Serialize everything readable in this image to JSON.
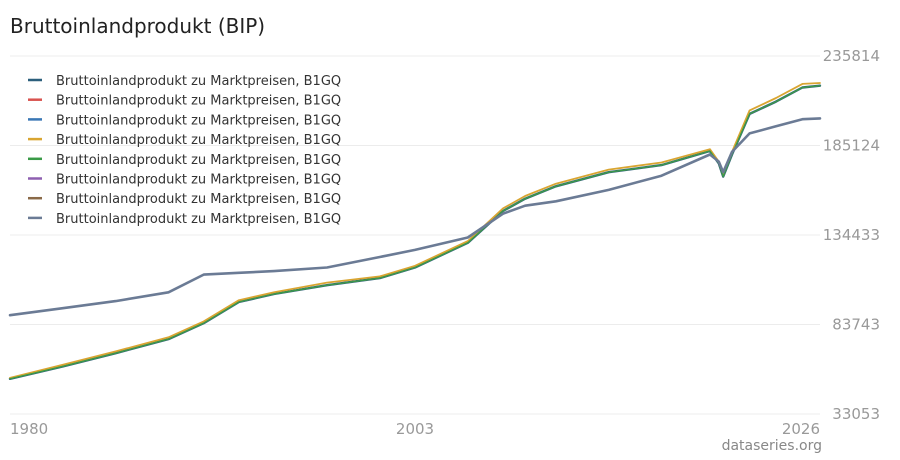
{
  "page": {
    "title": "Bruttoinlandprodukt (BIP)",
    "credit": "dataseries.org"
  },
  "chart_data": {
    "type": "line",
    "title": "Bruttoinlandprodukt (BIP)",
    "xlabel": "",
    "ylabel": "",
    "xlim": [
      1980,
      2026
    ],
    "ylim": [
      33053,
      235814
    ],
    "x_ticks": [
      "1980",
      "2003",
      "2026"
    ],
    "y_ticks": [
      "235814",
      "185124",
      "134433",
      "83743",
      "33053"
    ],
    "grid": true,
    "legend_position": "top-left",
    "series": [
      {
        "name": "Bruttoinlandprodukt zu Marktpreisen, B1GQ",
        "color": "#2c5f7c",
        "width": 2.4,
        "x": [
          1980.0,
          1983.0,
          1986.0,
          1989.0,
          1991.0,
          1993.0,
          1995.0,
          1998.0,
          2001.0,
          2003.0,
          2006.0,
          2008.0,
          2009.25,
          2011.0,
          2014.0,
          2017.0,
          2019.75,
          2020.25,
          2020.5,
          2021.0,
          2022.0,
          2023.5,
          2025.0,
          2026.0
        ],
        "y": [
          53000,
          60000,
          67500,
          75500,
          84500,
          96500,
          101000,
          106000,
          110000,
          116000,
          130000,
          148000,
          155000,
          162000,
          170000,
          174000,
          182000,
          175000,
          167500,
          180000,
          203000,
          210000,
          218000,
          219000
        ]
      },
      {
        "name": "Bruttoinlandprodukt zu Marktpreisen, B1GQ",
        "color": "#d9534f",
        "width": 1.2,
        "x": [
          1980.0,
          1983.0,
          1986.0,
          1989.0,
          1991.0,
          1993.0,
          1995.0,
          1998.0,
          2001.0,
          2003.0,
          2006.0,
          2008.0,
          2009.25,
          2011.0,
          2014.0,
          2017.0,
          2019.75,
          2020.25,
          2020.5,
          2021.0,
          2022.0,
          2023.5,
          2025.0,
          2026.0
        ],
        "y": [
          53000,
          60000,
          67500,
          75500,
          84500,
          96500,
          101000,
          106000,
          110000,
          116000,
          130000,
          148000,
          155000,
          162000,
          170000,
          174000,
          182000,
          175000,
          167500,
          180000,
          203000,
          210000,
          218000,
          219000
        ]
      },
      {
        "name": "Bruttoinlandprodukt zu Marktpreisen, B1GQ",
        "color": "#3a77b5",
        "width": 1.2,
        "x": [
          1980.0,
          1983.0,
          1986.0,
          1989.0,
          1991.0,
          1993.0,
          1995.0,
          1998.0,
          2001.0,
          2003.0,
          2006.0,
          2008.0,
          2009.25,
          2011.0,
          2014.0,
          2017.0,
          2019.75,
          2020.25,
          2020.5,
          2021.0,
          2022.0,
          2023.5,
          2025.0,
          2026.0
        ],
        "y": [
          53000,
          60000,
          67500,
          75500,
          84500,
          96500,
          101000,
          106000,
          110000,
          116000,
          130000,
          148000,
          155000,
          162000,
          170000,
          174000,
          182000,
          175000,
          167500,
          180000,
          203000,
          210000,
          218000,
          219000
        ]
      },
      {
        "name": "Bruttoinlandprodukt zu Marktpreisen, B1GQ",
        "color": "#d9a531",
        "width": 1.8,
        "x": [
          1980.0,
          1983.0,
          1986.0,
          1989.0,
          1991.0,
          1993.0,
          1995.0,
          1998.0,
          2001.0,
          2003.0,
          2006.0,
          2008.0,
          2009.25,
          2011.0,
          2014.0,
          2017.0,
          2019.75,
          2020.25,
          2020.5,
          2021.0,
          2022.0,
          2023.5,
          2025.0,
          2026.0
        ],
        "y": [
          53500,
          61000,
          68500,
          76500,
          85500,
          97500,
          102000,
          107500,
          111000,
          117000,
          131000,
          149500,
          156500,
          163500,
          171500,
          175500,
          183000,
          176000,
          168500,
          181500,
          205000,
          212000,
          220000,
          220500
        ]
      },
      {
        "name": "Bruttoinlandprodukt zu Marktpreisen, B1GQ",
        "color": "#3a9a47",
        "width": 1.4,
        "x": [
          1980.0,
          1983.0,
          1986.0,
          1989.0,
          1991.0,
          1993.0,
          1995.0,
          1998.0,
          2001.0,
          2003.0,
          2006.0,
          2008.0,
          2009.25,
          2011.0,
          2014.0,
          2017.0,
          2019.75,
          2020.25,
          2020.5,
          2021.0,
          2022.0,
          2023.5,
          2025.0,
          2026.0
        ],
        "y": [
          53000,
          60000,
          67500,
          75500,
          84500,
          96500,
          101000,
          106000,
          110000,
          116000,
          130000,
          148000,
          155000,
          162000,
          170000,
          174000,
          182000,
          175000,
          167500,
          180000,
          203000,
          210000,
          218000,
          219000
        ]
      },
      {
        "name": "Bruttoinlandprodukt zu Marktpreisen, B1GQ",
        "color": "#8e5fb0",
        "width": 1.4,
        "x": [
          1980.0,
          1983.0,
          1986.0,
          1989.0,
          1991.0,
          1993.0,
          1995.0,
          1998.0,
          2001.0,
          2003.0,
          2006.0,
          2008.0,
          2009.25,
          2011.0,
          2014.0,
          2017.0,
          2019.75,
          2020.25,
          2020.5,
          2021.0,
          2022.0,
          2023.5,
          2025.0,
          2026.0
        ],
        "y": [
          89000,
          93000,
          97000,
          102000,
          112000,
          113000,
          114000,
          116000,
          122000,
          126000,
          133000,
          146500,
          151000,
          153500,
          160000,
          168000,
          180000,
          176000,
          170000,
          181500,
          192000,
          196000,
          200000,
          200500
        ]
      },
      {
        "name": "Bruttoinlandprodukt zu Marktpreisen, B1GQ",
        "color": "#8a6a48",
        "width": 1.2,
        "x": [
          1980.0,
          1983.0,
          1986.0,
          1989.0,
          1991.0,
          1993.0,
          1995.0,
          1998.0,
          2001.0,
          2003.0,
          2006.0,
          2008.0,
          2009.25,
          2011.0,
          2014.0,
          2017.0,
          2019.75,
          2020.25,
          2020.5,
          2021.0,
          2022.0,
          2023.5,
          2025.0,
          2026.0
        ],
        "y": [
          89000,
          93000,
          97000,
          102000,
          112000,
          113000,
          114000,
          116000,
          122000,
          126000,
          133000,
          146500,
          151000,
          153500,
          160000,
          168000,
          180000,
          176000,
          170000,
          181500,
          192000,
          196000,
          200000,
          200500
        ]
      },
      {
        "name": "Bruttoinlandprodukt zu Marktpreisen, B1GQ",
        "color": "#6b7b95",
        "width": 2.6,
        "x": [
          1980.0,
          1983.0,
          1986.0,
          1989.0,
          1991.0,
          1993.0,
          1995.0,
          1998.0,
          2001.0,
          2003.0,
          2006.0,
          2008.0,
          2009.25,
          2011.0,
          2014.0,
          2017.0,
          2019.75,
          2020.25,
          2020.5,
          2021.0,
          2022.0,
          2023.5,
          2025.0,
          2026.0
        ],
        "y": [
          89000,
          93000,
          97000,
          102000,
          112000,
          113000,
          114000,
          116000,
          122000,
          126000,
          133000,
          146500,
          151000,
          153500,
          160000,
          168000,
          180000,
          176000,
          170000,
          181500,
          192000,
          196000,
          200000,
          200500
        ]
      }
    ]
  }
}
